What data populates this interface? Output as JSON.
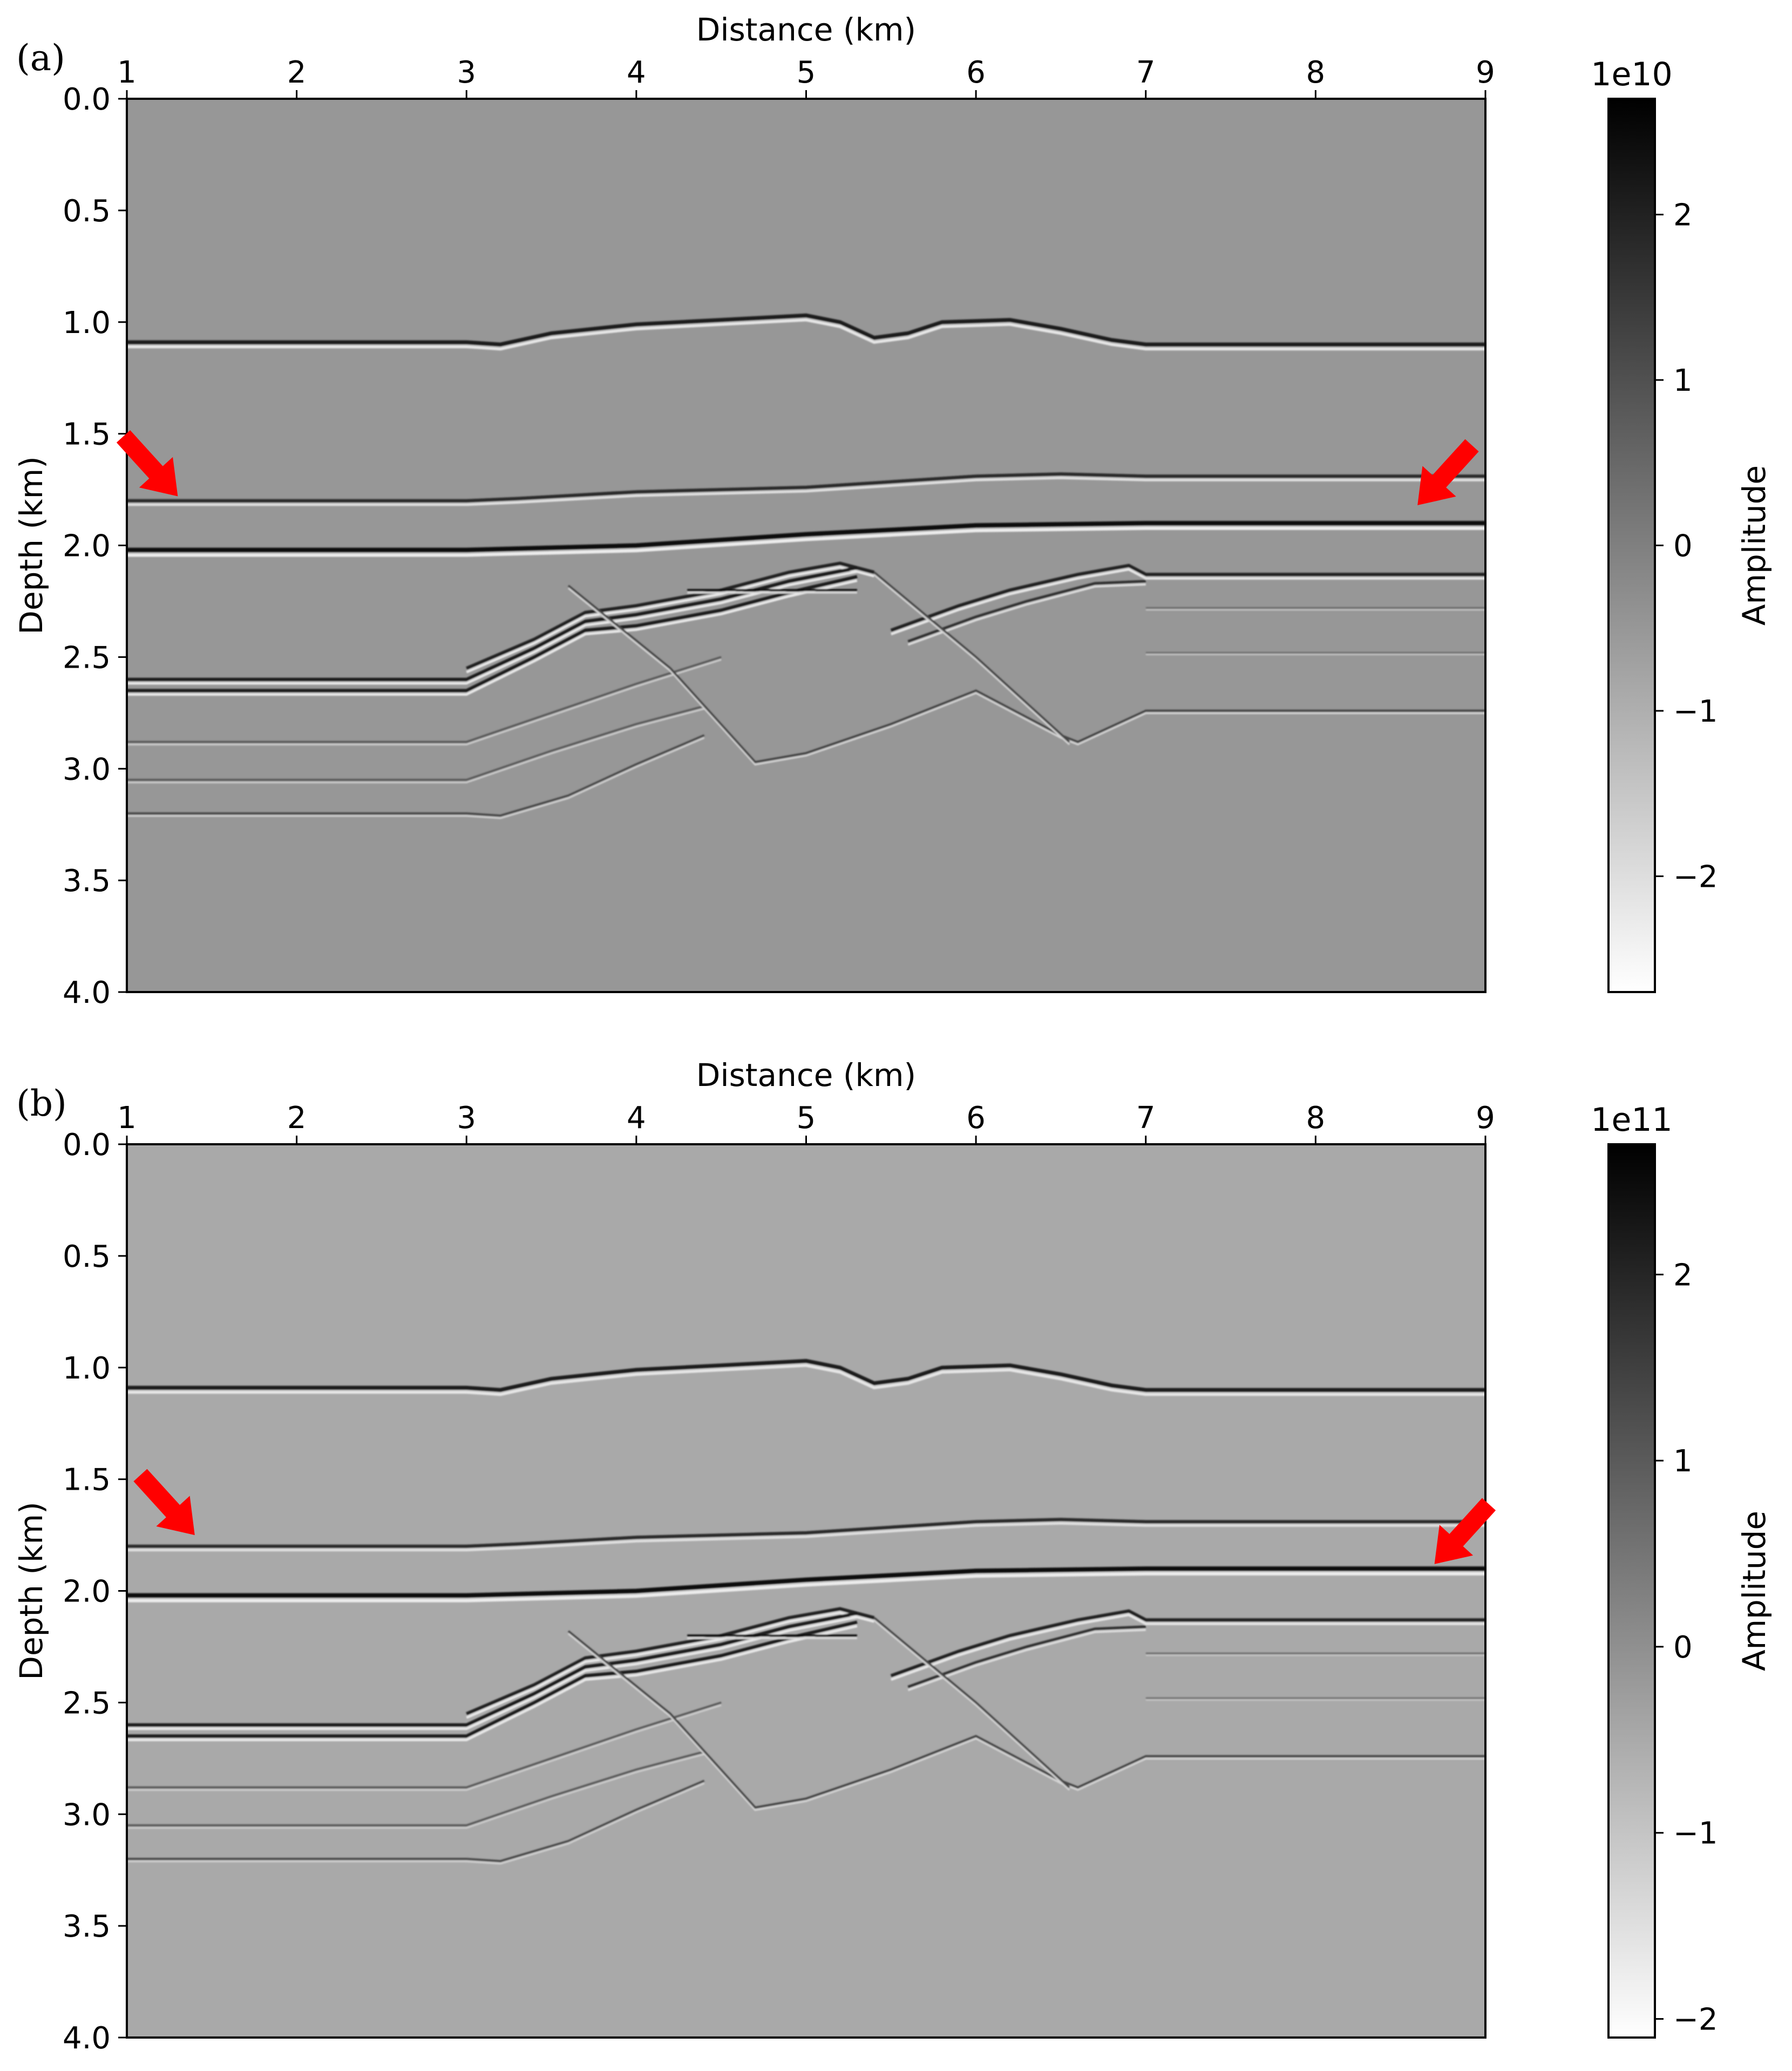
{
  "chart_data": [
    {
      "type": "heatmap",
      "panel_label": "(a)",
      "xlabel": "Distance (km)",
      "ylabel": "Depth (km)",
      "xlim": [
        1,
        9
      ],
      "ylim": [
        4.0,
        0.0
      ],
      "x_ticks": [
        "1",
        "2",
        "3",
        "4",
        "5",
        "6",
        "7",
        "8",
        "9"
      ],
      "y_ticks": [
        "0.0",
        "0.5",
        "1.0",
        "1.5",
        "2.0",
        "2.5",
        "3.0",
        "3.5",
        "4.0"
      ],
      "background_color": "#979797",
      "colormap": "gray_r",
      "colorbar": {
        "label": "Amplitude",
        "scale_text": "1e10",
        "range": [
          -2.7,
          2.7
        ],
        "ticks": [
          2,
          1,
          0,
          -1,
          -2
        ],
        "tick_labels": [
          "2",
          "1",
          "0",
          "−1",
          "−2"
        ]
      },
      "arrows": [
        {
          "color": "#ff0000",
          "points_to": [
            1.3,
            1.78
          ]
        },
        {
          "color": "#ff0000",
          "points_to": [
            8.6,
            1.82
          ]
        }
      ]
    },
    {
      "type": "heatmap",
      "panel_label": "(b)",
      "xlabel": "Distance (km)",
      "ylabel": "Depth (km)",
      "xlim": [
        1,
        9
      ],
      "ylim": [
        4.0,
        0.0
      ],
      "x_ticks": [
        "1",
        "2",
        "3",
        "4",
        "5",
        "6",
        "7",
        "8",
        "9"
      ],
      "y_ticks": [
        "0.0",
        "0.5",
        "1.0",
        "1.5",
        "2.0",
        "2.5",
        "3.0",
        "3.5",
        "4.0"
      ],
      "background_color": "#a9a9a9",
      "colormap": "gray_r",
      "colorbar": {
        "label": "Amplitude",
        "scale_text": "1e11",
        "range": [
          -2.1,
          2.7
        ],
        "ticks": [
          2,
          1,
          0,
          -1,
          -2
        ],
        "tick_labels": [
          "2",
          "1",
          "0",
          "−1",
          "−2"
        ]
      },
      "arrows": [
        {
          "color": "#ff0000",
          "points_to": [
            1.4,
            1.75
          ]
        },
        {
          "color": "#ff0000",
          "points_to": [
            8.7,
            1.88
          ]
        }
      ]
    }
  ]
}
